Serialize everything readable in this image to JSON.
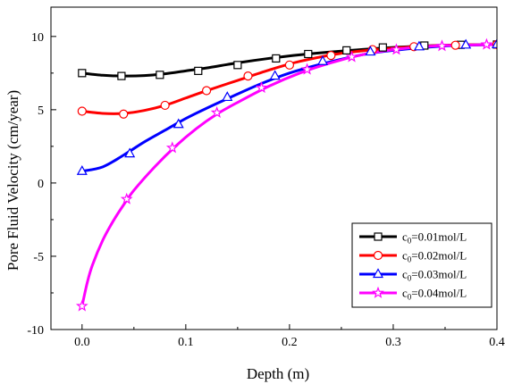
{
  "chart_data": {
    "type": "line",
    "xlabel": "Depth (m)",
    "ylabel": "Pore Fluid Velocity (cm/year)",
    "xlim": [
      -0.03,
      0.4
    ],
    "ylim": [
      -10,
      12
    ],
    "x_ticks": [
      "0.0",
      "0.1",
      "0.2",
      "0.3",
      "0.4"
    ],
    "y_ticks": [
      "-10",
      "-5",
      "0",
      "5",
      "10"
    ],
    "grid": false,
    "legend_position": "bottom-right",
    "series": [
      {
        "name_base": "c",
        "name_sub": "0",
        "name_rest": "=0.01mol/L",
        "color": "#000000",
        "marker": "square",
        "x": [
          0,
          0.02,
          0.04,
          0.06,
          0.08,
          0.1,
          0.12,
          0.15,
          0.18,
          0.21,
          0.25,
          0.3,
          0.35,
          0.4
        ],
        "y": [
          7.5,
          7.35,
          7.3,
          7.33,
          7.45,
          7.65,
          7.85,
          8.2,
          8.5,
          8.75,
          9.0,
          9.25,
          9.4,
          9.45
        ],
        "marker_x": [
          0,
          0.038,
          0.075,
          0.112,
          0.15,
          0.187,
          0.218,
          0.255,
          0.29,
          0.33,
          0.365,
          0.4
        ],
        "marker_y": [
          7.5,
          7.3,
          7.38,
          7.65,
          8.05,
          8.5,
          8.8,
          9.05,
          9.25,
          9.38,
          9.43,
          9.45
        ]
      },
      {
        "name_base": "c",
        "name_sub": "0",
        "name_rest": "=0.02mol/L",
        "color": "#ff0000",
        "marker": "circle",
        "x": [
          0,
          0.02,
          0.04,
          0.06,
          0.08,
          0.1,
          0.12,
          0.15,
          0.18,
          0.21,
          0.25,
          0.3,
          0.35,
          0.4
        ],
        "y": [
          4.9,
          4.75,
          4.75,
          4.95,
          5.3,
          5.8,
          6.3,
          7.0,
          7.7,
          8.3,
          8.85,
          9.2,
          9.4,
          9.45
        ],
        "marker_x": [
          0,
          0.04,
          0.08,
          0.12,
          0.16,
          0.2,
          0.24,
          0.28,
          0.32,
          0.36,
          0.4
        ],
        "marker_y": [
          4.9,
          4.7,
          5.3,
          6.3,
          7.3,
          8.05,
          8.7,
          9.1,
          9.3,
          9.4,
          9.45
        ]
      },
      {
        "name_base": "c",
        "name_sub": "0",
        "name_rest": "=0.03mol/L",
        "color": "#0000ff",
        "marker": "triangle",
        "x": [
          0,
          0.02,
          0.04,
          0.06,
          0.08,
          0.1,
          0.12,
          0.14,
          0.17,
          0.2,
          0.23,
          0.27,
          0.3,
          0.35,
          0.4
        ],
        "y": [
          0.8,
          1.1,
          1.9,
          2.8,
          3.6,
          4.4,
          5.1,
          5.75,
          6.7,
          7.5,
          8.1,
          8.75,
          9.05,
          9.35,
          9.45
        ],
        "marker_x": [
          0,
          0.046,
          0.093,
          0.14,
          0.186,
          0.232,
          0.278,
          0.325,
          0.37,
          0.4
        ],
        "marker_y": [
          0.8,
          2.0,
          4.0,
          5.85,
          7.3,
          8.3,
          8.95,
          9.3,
          9.42,
          9.45
        ]
      },
      {
        "name_base": "c",
        "name_sub": "0",
        "name_rest": "=0.04mol/L",
        "color": "#ff00ff",
        "marker": "star",
        "x": [
          0,
          0.005,
          0.01,
          0.02,
          0.03,
          0.04,
          0.05,
          0.07,
          0.09,
          0.11,
          0.13,
          0.15,
          0.18,
          0.21,
          0.24,
          0.27,
          0.3,
          0.34,
          0.4
        ],
        "y": [
          -8.4,
          -6.8,
          -5.6,
          -3.9,
          -2.6,
          -1.5,
          -0.5,
          1.1,
          2.5,
          3.7,
          4.7,
          5.5,
          6.6,
          7.5,
          8.2,
          8.75,
          9.1,
          9.35,
          9.45
        ],
        "marker_x": [
          0,
          0.043,
          0.087,
          0.13,
          0.173,
          0.217,
          0.26,
          0.303,
          0.347,
          0.39
        ],
        "marker_y": [
          -8.4,
          -1.1,
          2.4,
          4.8,
          6.5,
          7.75,
          8.6,
          9.1,
          9.35,
          9.45
        ]
      }
    ]
  }
}
